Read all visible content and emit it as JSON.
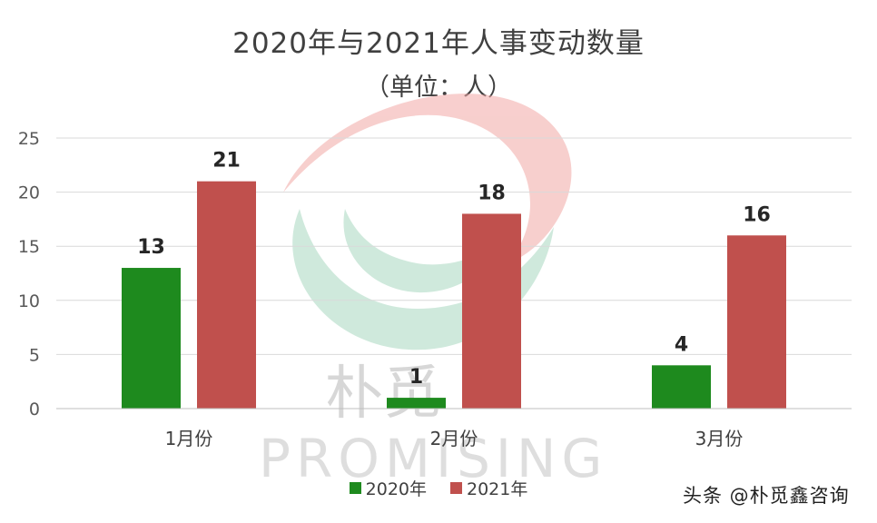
{
  "chart_data": {
    "type": "bar",
    "title": "2020年与2021年人事变动数量",
    "subtitle": "（单位：人）",
    "categories": [
      "1月份",
      "2月份",
      "3月份"
    ],
    "series": [
      {
        "name": "2020年",
        "color": "#1e8a1e",
        "values": [
          13,
          1,
          4
        ]
      },
      {
        "name": "2021年",
        "color": "#c0504d",
        "values": [
          21,
          18,
          16
        ]
      }
    ],
    "ylim": [
      0,
      25
    ],
    "yticks": [
      "0",
      "5",
      "10",
      "15",
      "20",
      "25"
    ],
    "grid": true,
    "legend_position": "bottom"
  },
  "watermark": {
    "logo_cn": "朴觅",
    "logo_en": "PROMISING",
    "source_label": "头条 @朴觅鑫咨询"
  }
}
